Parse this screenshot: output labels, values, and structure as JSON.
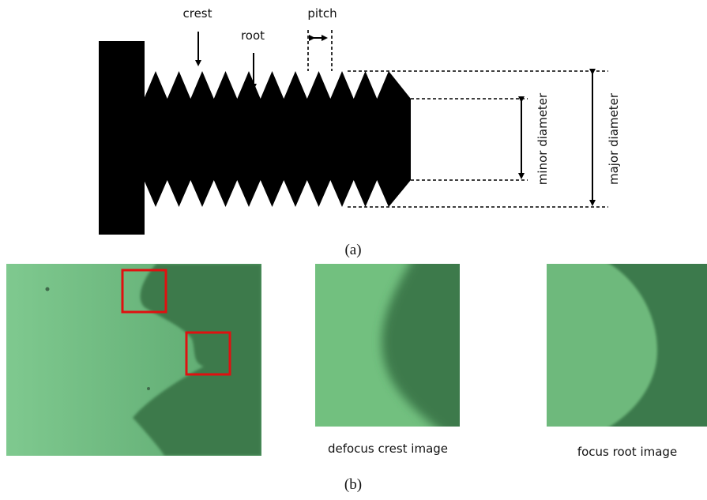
{
  "diagram_a": {
    "labels": {
      "crest": "crest",
      "root": "root",
      "pitch": "pitch",
      "minor": "minor diameter",
      "major": "major diameter"
    },
    "caption": "(a)"
  },
  "diagram_b": {
    "captions": [
      "defocus crest image",
      "focus root image"
    ],
    "caption": "(b)"
  }
}
